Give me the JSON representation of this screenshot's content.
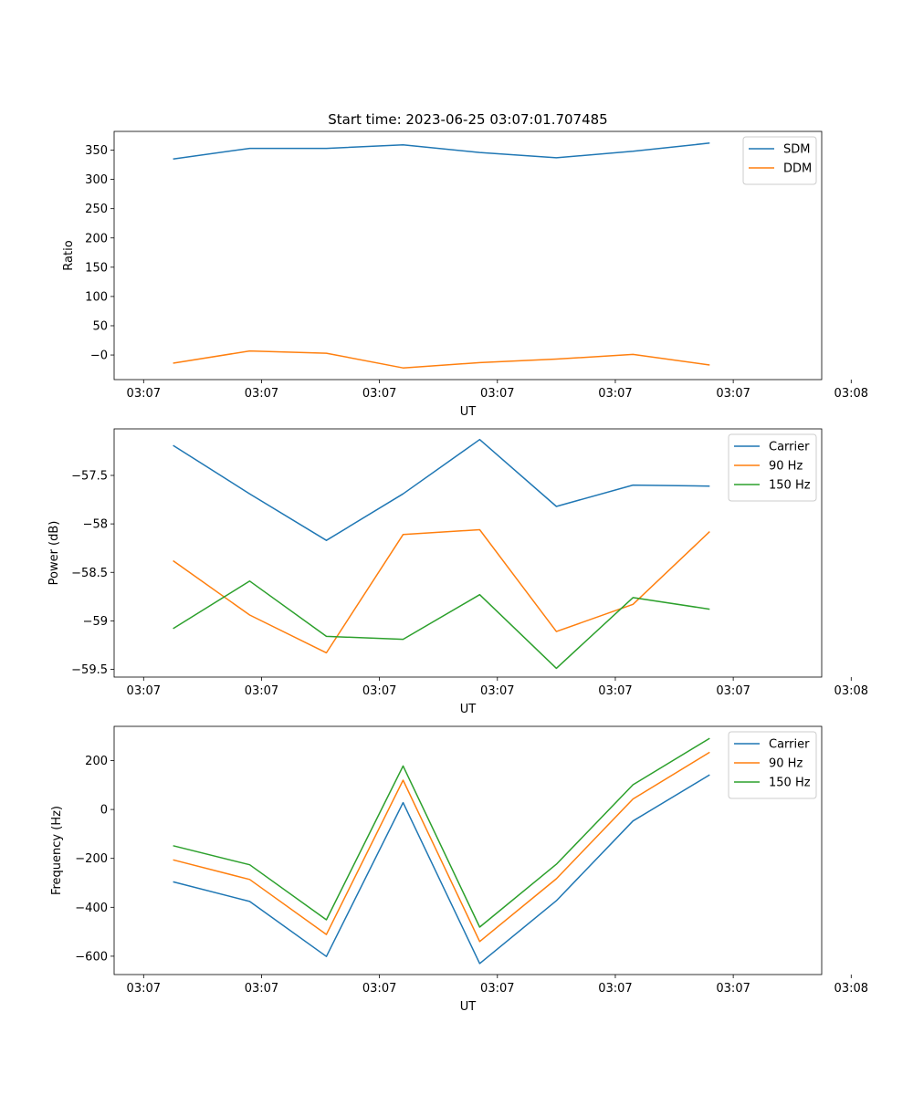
{
  "chart_data": [
    {
      "type": "line",
      "title": "Start time: 2023-06-25 03:07:01.707485",
      "xlabel": "UT",
      "ylabel": "Ratio",
      "xticks": [
        "03:07",
        "03:07",
        "03:07",
        "03:07",
        "03:07",
        "03:07",
        "03:08"
      ],
      "xlim": [
        0,
        6
      ],
      "x": [
        0.5,
        1.15,
        1.8,
        2.45,
        3.1,
        3.75,
        4.4,
        5.05
      ],
      "ylim": [
        -42,
        382
      ],
      "yticks": [
        0,
        50,
        100,
        150,
        200,
        250,
        300,
        350
      ],
      "grid": false,
      "legend_position": "top-right",
      "series": [
        {
          "name": "SDM",
          "color": "#1f77b4",
          "values": [
            335,
            353,
            353,
            359,
            346,
            337,
            348,
            362
          ]
        },
        {
          "name": "DDM",
          "color": "#ff7f0e",
          "values": [
            -14,
            7,
            3,
            -22,
            -13,
            -7,
            1,
            -17
          ]
        }
      ]
    },
    {
      "type": "line",
      "title": "",
      "xlabel": "UT",
      "ylabel": "Power (dB)",
      "xticks": [
        "03:07",
        "03:07",
        "03:07",
        "03:07",
        "03:07",
        "03:07",
        "03:08"
      ],
      "xlim": [
        0,
        6
      ],
      "x": [
        0.5,
        1.15,
        1.8,
        2.45,
        3.1,
        3.75,
        4.4,
        5.05
      ],
      "ylim": [
        -59.58,
        -57.02
      ],
      "yticks": [
        -59.5,
        -59.0,
        -58.5,
        -58.0,
        -57.5
      ],
      "grid": false,
      "legend_position": "top-right",
      "series": [
        {
          "name": "Carrier",
          "color": "#1f77b4",
          "values": [
            -57.19,
            -57.69,
            -58.17,
            -57.69,
            -57.13,
            -57.82,
            -57.6,
            -57.61
          ]
        },
        {
          "name": "90 Hz",
          "color": "#ff7f0e",
          "values": [
            -58.38,
            -58.94,
            -59.33,
            -58.11,
            -58.06,
            -59.11,
            -58.83,
            -58.08
          ]
        },
        {
          "name": "150 Hz",
          "color": "#2ca02c",
          "values": [
            -59.08,
            -58.59,
            -59.16,
            -59.19,
            -58.73,
            -59.49,
            -58.76,
            -58.88
          ]
        }
      ]
    },
    {
      "type": "line",
      "title": "",
      "xlabel": "UT",
      "ylabel": "Frequency (Hz)",
      "xticks": [
        "03:07",
        "03:07",
        "03:07",
        "03:07",
        "03:07",
        "03:07",
        "03:08"
      ],
      "xlim": [
        0,
        6
      ],
      "x": [
        0.5,
        1.15,
        1.8,
        2.45,
        3.1,
        3.75,
        4.4,
        5.05
      ],
      "ylim": [
        -675,
        340
      ],
      "yticks": [
        -600,
        -400,
        -200,
        0,
        200
      ],
      "grid": false,
      "legend_position": "top-right",
      "series": [
        {
          "name": "Carrier",
          "color": "#1f77b4",
          "values": [
            -296,
            -376,
            -601,
            28,
            -630,
            -373,
            -47,
            142
          ]
        },
        {
          "name": "90 Hz",
          "color": "#ff7f0e",
          "values": [
            -206,
            -286,
            -511,
            120,
            -540,
            -283,
            43,
            234
          ]
        },
        {
          "name": "150 Hz",
          "color": "#2ca02c",
          "values": [
            -148,
            -226,
            -451,
            178,
            -481,
            -224,
            101,
            291
          ]
        }
      ]
    }
  ]
}
